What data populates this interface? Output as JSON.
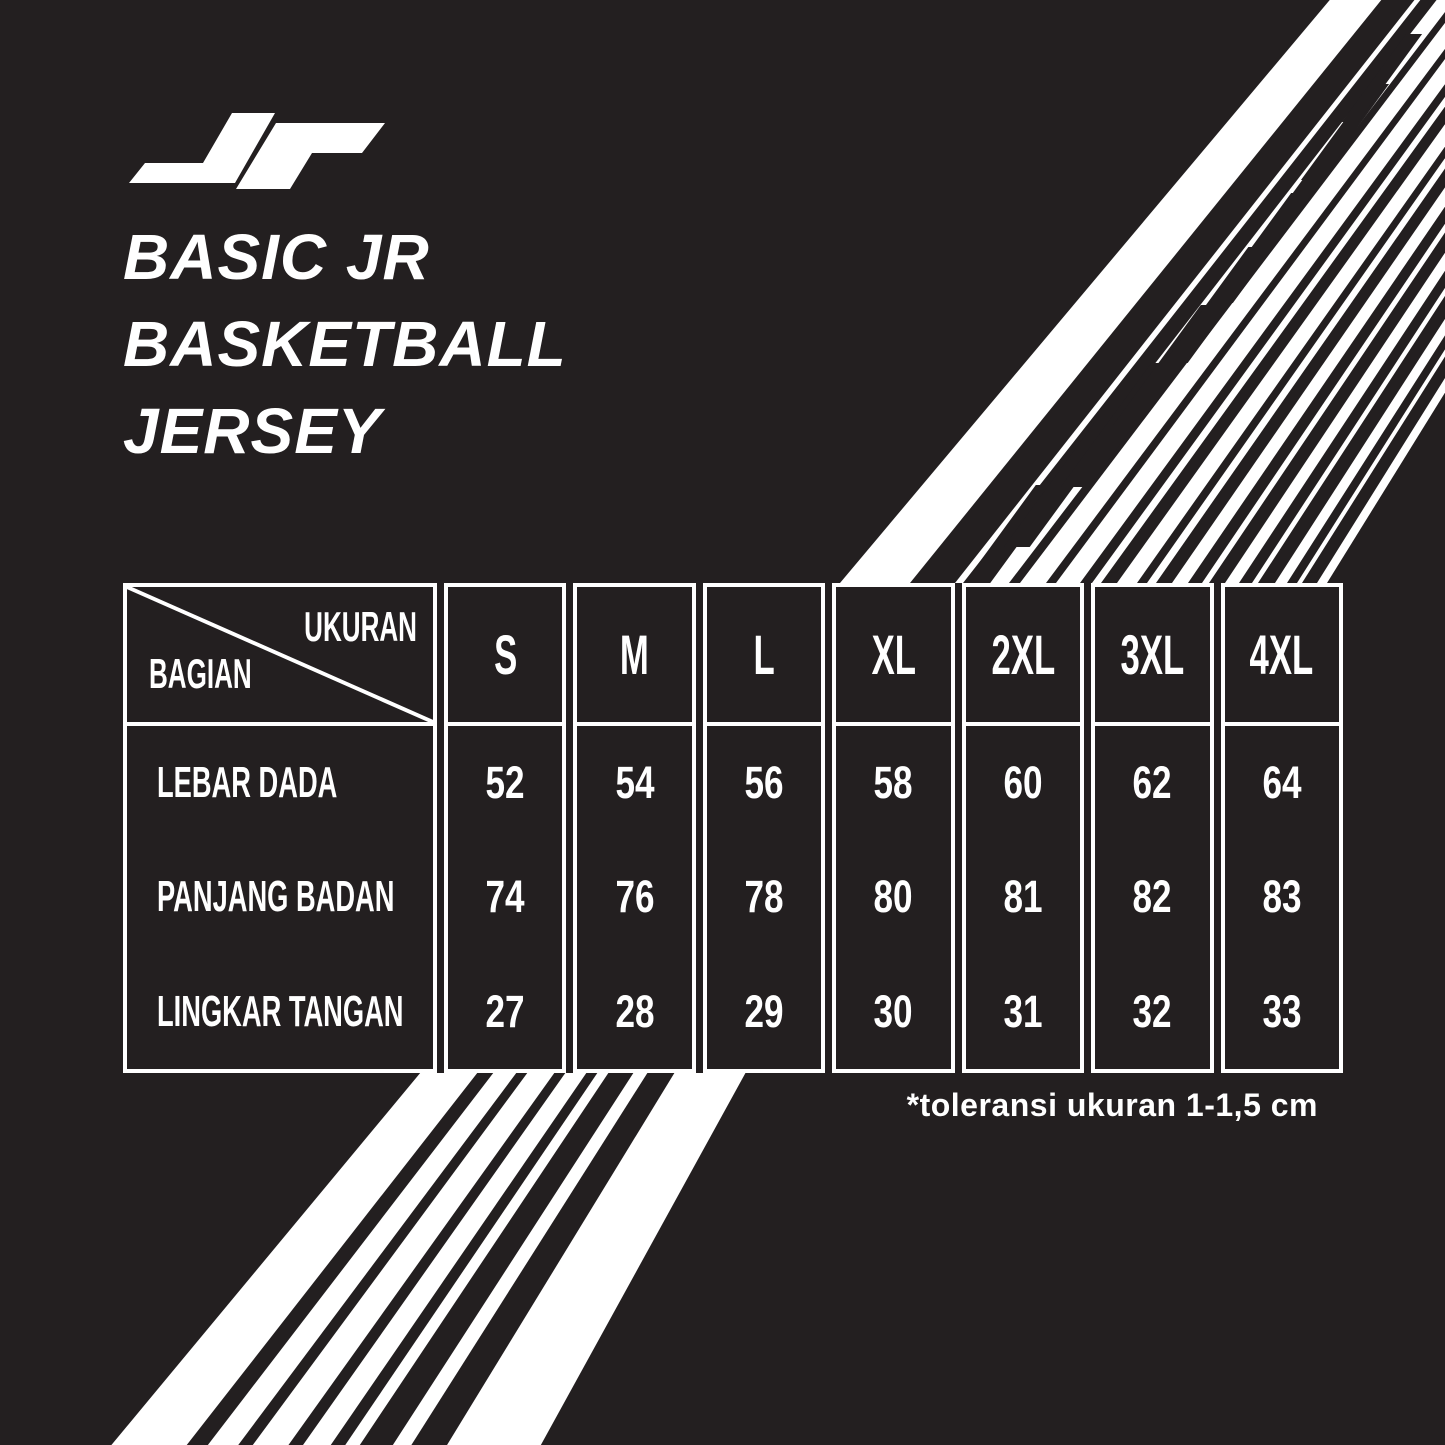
{
  "colors": {
    "background": "#231F20",
    "ink": "#FFFFFF"
  },
  "logo": {
    "name": "JR monogram"
  },
  "title": {
    "line1": "BASIC JR",
    "line2": "BASKETBALL",
    "line3": "JERSEY"
  },
  "chart_data": {
    "type": "table",
    "title": "BASIC JR BASKETBALL JERSEY",
    "corner_header": {
      "column_axis_label": "UKURAN",
      "row_axis_label": "BAGIAN"
    },
    "columns": [
      "S",
      "M",
      "L",
      "XL",
      "2XL",
      "3XL",
      "4XL"
    ],
    "rows": [
      {
        "label": "LEBAR DADA",
        "values": [
          "52",
          "54",
          "56",
          "58",
          "60",
          "62",
          "64"
        ]
      },
      {
        "label": "PANJANG BADAN",
        "values": [
          "74",
          "76",
          "78",
          "80",
          "81",
          "82",
          "83"
        ]
      },
      {
        "label": "LINGKAR TANGAN",
        "values": [
          "27",
          "28",
          "29",
          "30",
          "31",
          "32",
          "33"
        ]
      }
    ],
    "footnote": "*toleransi ukuran 1-1,5 cm"
  }
}
